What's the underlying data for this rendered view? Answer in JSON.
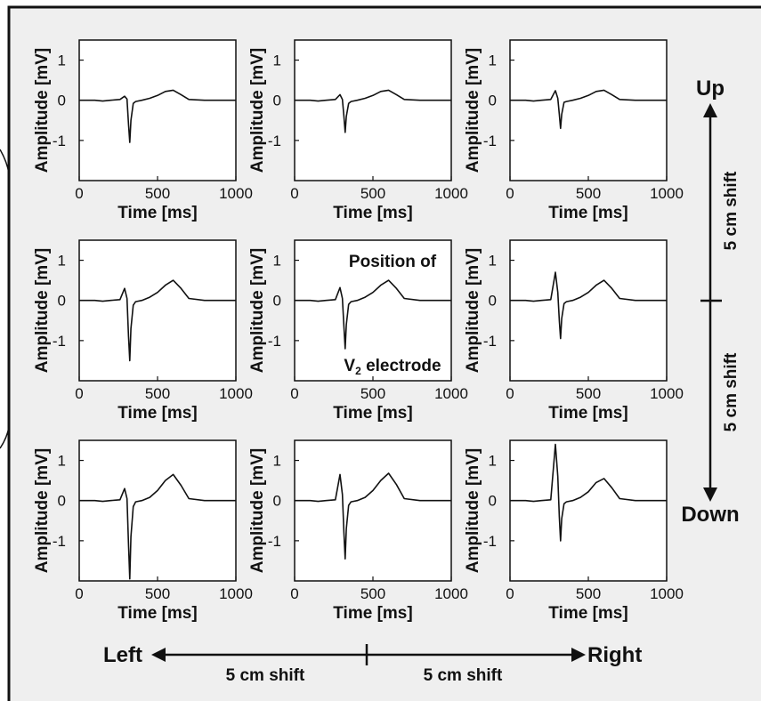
{
  "chart_data": [
    {
      "type": "line",
      "row": "top",
      "column": "left",
      "xlabel": "Time [ms]",
      "ylabel": "Amplitude [mV]",
      "xlim": [
        0,
        1000
      ],
      "ylim": [
        -2,
        1.5
      ],
      "xticks": [
        "0",
        "500",
        "1000"
      ],
      "yticks": [
        "1",
        "0",
        "-1"
      ],
      "series": [
        {
          "x": [
            0,
            100,
            150,
            200,
            260,
            290,
            305,
            315,
            323,
            330,
            345,
            360,
            400,
            450,
            500,
            550,
            600,
            650,
            700,
            800,
            900,
            1000
          ],
          "y": [
            0,
            0,
            -0.02,
            0,
            0.02,
            0.1,
            0.03,
            -0.6,
            -1.05,
            -0.5,
            -0.08,
            -0.03,
            0,
            0.05,
            0.12,
            0.22,
            0.25,
            0.14,
            0.02,
            0,
            0,
            0
          ]
        }
      ]
    },
    {
      "type": "line",
      "row": "top",
      "column": "center",
      "xlabel": "Time [ms]",
      "ylabel": "Amplitude [mV]",
      "xlim": [
        0,
        1000
      ],
      "ylim": [
        -2,
        1.5
      ],
      "xticks": [
        "0",
        "500",
        "1000"
      ],
      "yticks": [
        "1",
        "0",
        "-1"
      ],
      "series": [
        {
          "x": [
            0,
            100,
            150,
            200,
            260,
            290,
            305,
            315,
            323,
            330,
            345,
            360,
            400,
            450,
            500,
            550,
            600,
            650,
            700,
            800,
            900,
            1000
          ],
          "y": [
            0,
            0,
            -0.02,
            0,
            0.02,
            0.14,
            0.02,
            -0.4,
            -0.8,
            -0.4,
            -0.08,
            -0.03,
            0,
            0.05,
            0.12,
            0.22,
            0.25,
            0.14,
            0.02,
            0,
            0,
            0
          ]
        }
      ]
    },
    {
      "type": "line",
      "row": "top",
      "column": "right",
      "xlabel": "Time [ms]",
      "ylabel": "Amplitude [mV]",
      "xlim": [
        0,
        1000
      ],
      "ylim": [
        -2,
        1.5
      ],
      "xticks": [
        "0",
        "500",
        "1000"
      ],
      "yticks": [
        "1",
        "0",
        "-1"
      ],
      "series": [
        {
          "x": [
            0,
            100,
            150,
            200,
            260,
            290,
            305,
            315,
            323,
            330,
            345,
            360,
            400,
            450,
            500,
            550,
            600,
            650,
            700,
            800,
            900,
            1000
          ],
          "y": [
            0,
            0,
            -0.02,
            0,
            0.02,
            0.24,
            0.05,
            -0.35,
            -0.7,
            -0.35,
            -0.05,
            -0.03,
            0,
            0.05,
            0.12,
            0.22,
            0.25,
            0.14,
            0.02,
            0,
            0,
            0
          ]
        }
      ]
    },
    {
      "type": "line",
      "row": "middle",
      "column": "left",
      "xlabel": "Time [ms]",
      "ylabel": "Amplitude [mV]",
      "xlim": [
        0,
        1000
      ],
      "ylim": [
        -2,
        1.5
      ],
      "xticks": [
        "0",
        "500",
        "1000"
      ],
      "yticks": [
        "1",
        "0",
        "-1"
      ],
      "series": [
        {
          "x": [
            0,
            100,
            150,
            200,
            260,
            290,
            305,
            315,
            323,
            330,
            345,
            360,
            400,
            450,
            500,
            550,
            600,
            650,
            700,
            800,
            900,
            1000
          ],
          "y": [
            0,
            0,
            -0.02,
            0,
            0.02,
            0.3,
            0.05,
            -0.9,
            -1.5,
            -0.7,
            -0.12,
            -0.03,
            0,
            0.08,
            0.2,
            0.38,
            0.5,
            0.3,
            0.05,
            0,
            0,
            0
          ]
        }
      ]
    },
    {
      "type": "line",
      "row": "middle",
      "column": "center",
      "xlabel": "Time [ms]",
      "ylabel": "Amplitude [mV]",
      "xlim": [
        0,
        1000
      ],
      "ylim": [
        -2,
        1.5
      ],
      "xticks": [
        "0",
        "500",
        "1000"
      ],
      "yticks": [
        "1",
        "0",
        "-1"
      ],
      "annotations": [
        "Position of",
        "V2 electrode"
      ],
      "series": [
        {
          "x": [
            0,
            100,
            150,
            200,
            260,
            290,
            305,
            315,
            323,
            330,
            345,
            360,
            400,
            450,
            500,
            550,
            600,
            650,
            700,
            800,
            900,
            1000
          ],
          "y": [
            0,
            0,
            -0.02,
            0,
            0.02,
            0.32,
            0.05,
            -0.65,
            -1.2,
            -0.6,
            -0.1,
            -0.03,
            0,
            0.08,
            0.2,
            0.38,
            0.5,
            0.3,
            0.05,
            0,
            0,
            0
          ]
        }
      ]
    },
    {
      "type": "line",
      "row": "middle",
      "column": "right",
      "xlabel": "Time [ms]",
      "ylabel": "Amplitude [mV]",
      "xlim": [
        0,
        1000
      ],
      "ylim": [
        -2,
        1.5
      ],
      "xticks": [
        "0",
        "500",
        "1000"
      ],
      "yticks": [
        "1",
        "0",
        "-1"
      ],
      "series": [
        {
          "x": [
            0,
            100,
            150,
            200,
            260,
            290,
            305,
            315,
            323,
            330,
            345,
            360,
            400,
            450,
            500,
            550,
            600,
            650,
            700,
            800,
            900,
            1000
          ],
          "y": [
            0,
            0,
            -0.02,
            0,
            0.02,
            0.7,
            0.2,
            -0.5,
            -0.95,
            -0.45,
            -0.08,
            -0.03,
            0,
            0.08,
            0.2,
            0.38,
            0.5,
            0.3,
            0.05,
            0,
            0,
            0
          ]
        }
      ]
    },
    {
      "type": "line",
      "row": "bottom",
      "column": "left",
      "xlabel": "Time [ms]",
      "ylabel": "Amplitude [mV]",
      "xlim": [
        0,
        1000
      ],
      "ylim": [
        -2,
        1.5
      ],
      "xticks": [
        "0",
        "500",
        "1000"
      ],
      "yticks": [
        "1",
        "0",
        "-1"
      ],
      "series": [
        {
          "x": [
            0,
            100,
            150,
            200,
            260,
            290,
            305,
            315,
            323,
            330,
            345,
            360,
            400,
            450,
            500,
            550,
            600,
            650,
            700,
            800,
            900,
            1000
          ],
          "y": [
            0,
            0,
            -0.02,
            0,
            0.02,
            0.3,
            0.05,
            -1.1,
            -1.95,
            -0.9,
            -0.15,
            -0.03,
            0,
            0.08,
            0.25,
            0.5,
            0.65,
            0.38,
            0.05,
            0,
            0,
            0
          ]
        }
      ]
    },
    {
      "type": "line",
      "row": "bottom",
      "column": "center",
      "xlabel": "Time [ms]",
      "ylabel": "Amplitude [mV]",
      "xlim": [
        0,
        1000
      ],
      "ylim": [
        -2,
        1.5
      ],
      "xticks": [
        "0",
        "500",
        "1000"
      ],
      "yticks": [
        "1",
        "0",
        "-1"
      ],
      "series": [
        {
          "x": [
            0,
            100,
            150,
            200,
            260,
            290,
            305,
            315,
            323,
            330,
            345,
            360,
            400,
            450,
            500,
            550,
            600,
            650,
            700,
            800,
            900,
            1000
          ],
          "y": [
            0,
            0,
            -0.02,
            0,
            0.02,
            0.65,
            0.15,
            -0.8,
            -1.45,
            -0.7,
            -0.12,
            -0.03,
            0,
            0.08,
            0.25,
            0.5,
            0.68,
            0.4,
            0.05,
            0,
            0,
            0
          ]
        }
      ]
    },
    {
      "type": "line",
      "row": "bottom",
      "column": "right",
      "xlabel": "Time [ms]",
      "ylabel": "Amplitude [mV]",
      "xlim": [
        0,
        1000
      ],
      "ylim": [
        -2,
        1.5
      ],
      "xticks": [
        "0",
        "500",
        "1000"
      ],
      "yticks": [
        "1",
        "0",
        "-1"
      ],
      "series": [
        {
          "x": [
            0,
            100,
            150,
            200,
            260,
            290,
            305,
            315,
            323,
            330,
            345,
            360,
            400,
            450,
            500,
            550,
            600,
            650,
            700,
            800,
            900,
            1000
          ],
          "y": [
            0,
            0,
            -0.02,
            0,
            0.02,
            1.4,
            0.6,
            -0.4,
            -1.0,
            -0.45,
            -0.08,
            -0.03,
            0,
            0.08,
            0.22,
            0.45,
            0.55,
            0.32,
            0.05,
            0,
            0,
            0
          ]
        }
      ]
    }
  ],
  "directions": {
    "up": "Up",
    "down": "Down",
    "left": "Left",
    "right": "Right",
    "shift_label": "5 cm shift"
  },
  "colors": {
    "panel_background": "#efefef",
    "line": "#111111",
    "plot_background": "#ffffff"
  }
}
